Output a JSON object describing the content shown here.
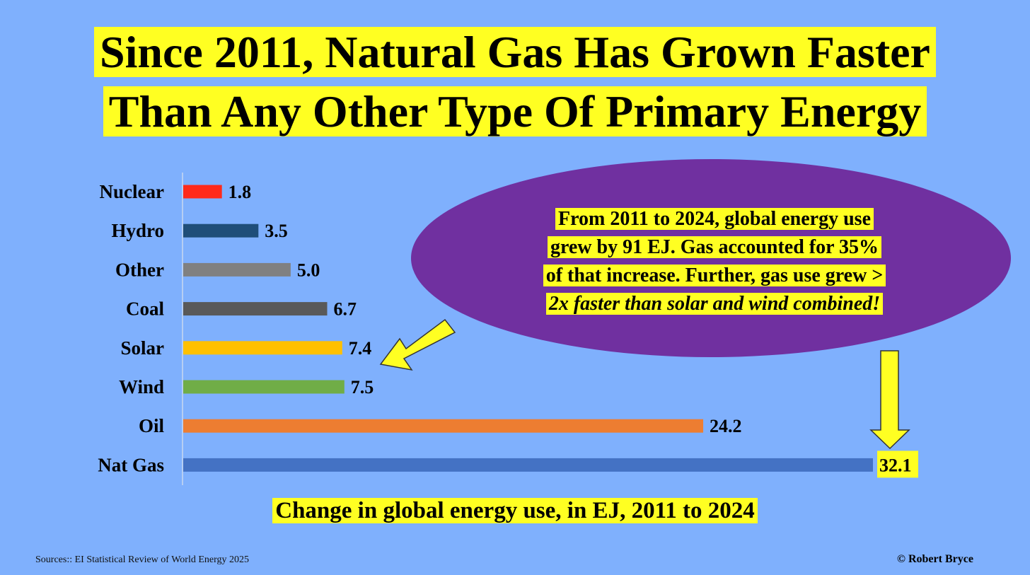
{
  "title": {
    "line1": "Since 2011, Natural Gas Has Grown Faster",
    "line2": "Than Any Other Type Of Primary Energy"
  },
  "callout": {
    "line1": "From 2011 to 2024, global energy use",
    "line2": "grew by 91 EJ. Gas accounted for 35%",
    "line3": "of that increase. Further, gas use grew >",
    "line4": "2x faster than solar and wind combined!"
  },
  "chart_data": {
    "type": "bar",
    "orientation": "horizontal",
    "title": "Change in global energy use, in EJ, 2011 to 2024",
    "xlabel": "Change in global energy use, in EJ, 2011 to 2024",
    "ylabel": "",
    "xlim": [
      0,
      32.1
    ],
    "grid": false,
    "categories": [
      "Nuclear",
      "Hydro",
      "Other",
      "Coal",
      "Solar",
      "Wind",
      "Oil",
      "Nat Gas"
    ],
    "values": [
      1.8,
      3.5,
      5.0,
      6.7,
      7.4,
      7.5,
      24.2,
      32.1
    ],
    "value_labels": [
      "1.8",
      "3.5",
      "5.0",
      "6.7",
      "7.4",
      "7.5",
      "24.2",
      "32.1"
    ],
    "colors": [
      "#ff2a1a",
      "#1f4e79",
      "#808080",
      "#595959",
      "#ffc000",
      "#70ad47",
      "#ed7d31",
      "#4472c4"
    ]
  },
  "source": "Sources:: EI Statistical Review of World Energy 2025",
  "credit": "© Robert Bryce",
  "colors": {
    "background": "#7fb0fd",
    "highlight": "#ffff22",
    "ellipse": "#7030a0",
    "arrow": "#ffff22"
  }
}
